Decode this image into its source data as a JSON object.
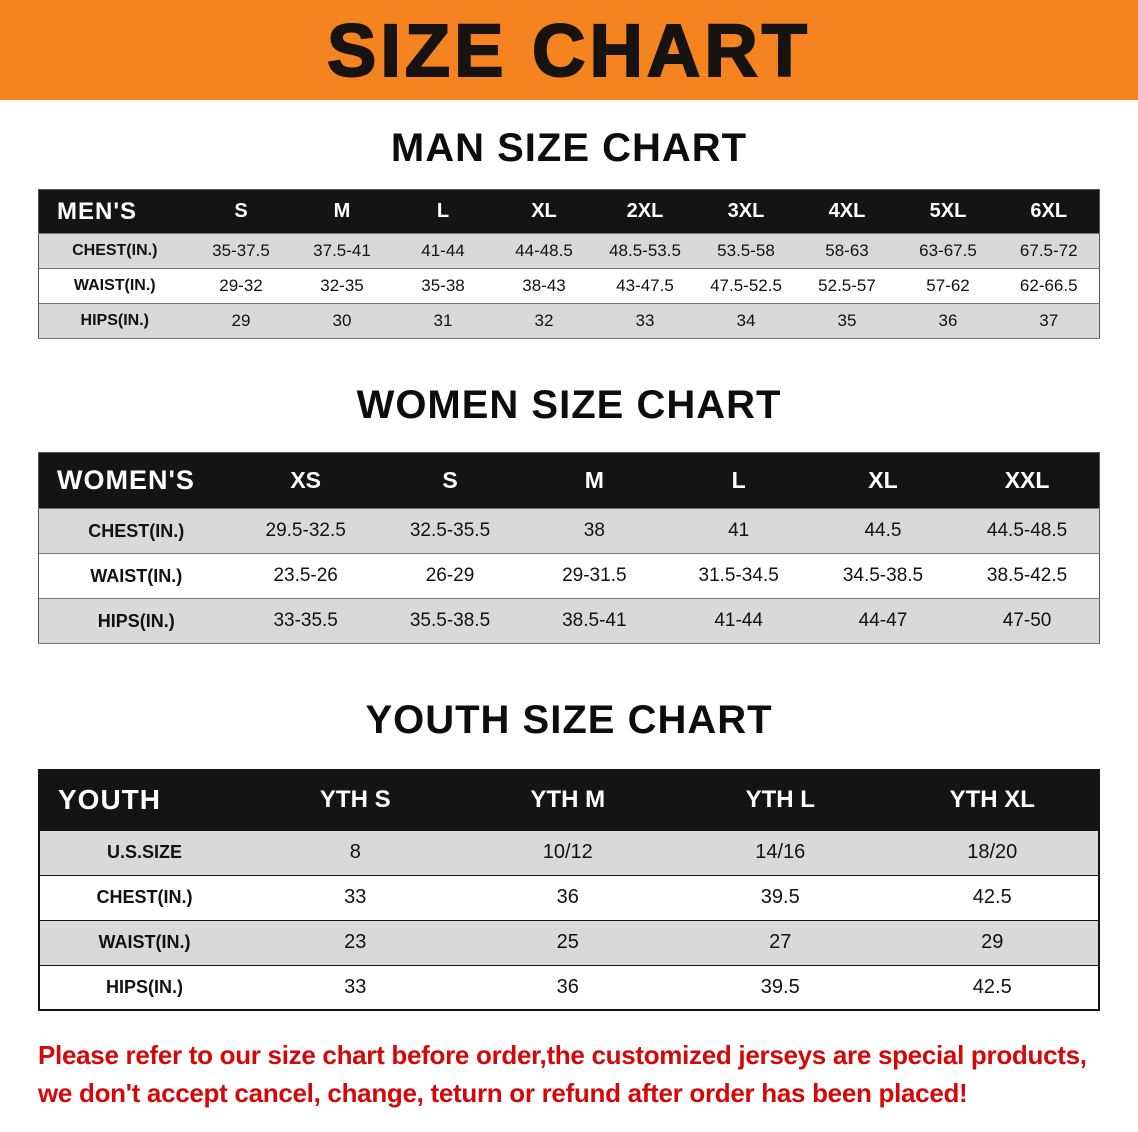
{
  "banner": {
    "title": "SIZE CHART",
    "bg_color": "#f5831f"
  },
  "colors": {
    "header_bar": "#141414",
    "stripe": "#d9d9d9",
    "notice_text": "#d40808"
  },
  "sections": [
    {
      "id": "men",
      "heading": "MAN SIZE CHART",
      "corner": "MEN'S",
      "columns": [
        "S",
        "M",
        "L",
        "XL",
        "2XL",
        "3XL",
        "4XL",
        "5XL",
        "6XL"
      ],
      "rows": [
        {
          "label": "CHEST(IN.)",
          "values": [
            "35-37.5",
            "37.5-41",
            "41-44",
            "44-48.5",
            "48.5-53.5",
            "53.5-58",
            "58-63",
            "63-67.5",
            "67.5-72"
          ]
        },
        {
          "label": "WAIST(IN.)",
          "values": [
            "29-32",
            "32-35",
            "35-38",
            "38-43",
            "43-47.5",
            "47.5-52.5",
            "52.5-57",
            "57-62",
            "62-66.5"
          ]
        },
        {
          "label": "HIPS(IN.)",
          "values": [
            "29",
            "30",
            "31",
            "32",
            "33",
            "34",
            "35",
            "36",
            "37"
          ]
        }
      ]
    },
    {
      "id": "women",
      "heading": "WOMEN SIZE CHART",
      "corner": "WOMEN'S",
      "columns": [
        "XS",
        "S",
        "M",
        "L",
        "XL",
        "XXL"
      ],
      "rows": [
        {
          "label": "CHEST(IN.)",
          "values": [
            "29.5-32.5",
            "32.5-35.5",
            "38",
            "41",
            "44.5",
            "44.5-48.5"
          ]
        },
        {
          "label": "WAIST(IN.)",
          "values": [
            "23.5-26",
            "26-29",
            "29-31.5",
            "31.5-34.5",
            "34.5-38.5",
            "38.5-42.5"
          ]
        },
        {
          "label": "HIPS(IN.)",
          "values": [
            "33-35.5",
            "35.5-38.5",
            "38.5-41",
            "41-44",
            "44-47",
            "47-50"
          ]
        }
      ]
    },
    {
      "id": "youth",
      "heading": "YOUTH SIZE CHART",
      "corner": "YOUTH",
      "columns": [
        "YTH S",
        "YTH M",
        "YTH L",
        "YTH XL"
      ],
      "rows": [
        {
          "label": "U.S.SIZE",
          "values": [
            "8",
            "10/12",
            "14/16",
            "18/20"
          ]
        },
        {
          "label": "CHEST(IN.)",
          "values": [
            "33",
            "36",
            "39.5",
            "42.5"
          ]
        },
        {
          "label": "WAIST(IN.)",
          "values": [
            "23",
            "25",
            "27",
            "29"
          ]
        },
        {
          "label": "HIPS(IN.)",
          "values": [
            "33",
            "36",
            "39.5",
            "42.5"
          ]
        }
      ]
    }
  ],
  "footer": {
    "line1": "Please refer to our size chart before order,the customized jerseys are special products,",
    "line2": "we don't accept cancel, change, teturn or refund after order has been placed!"
  }
}
